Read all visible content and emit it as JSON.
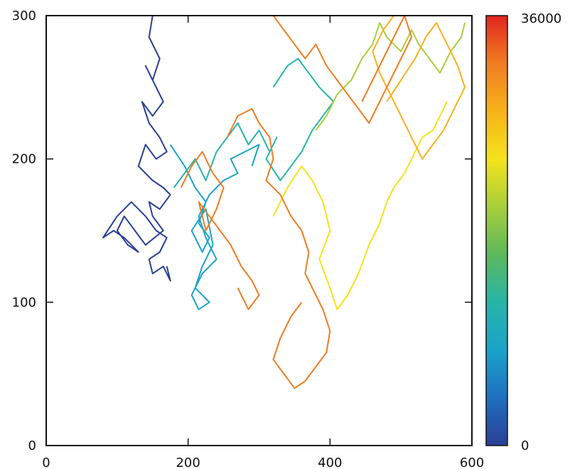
{
  "chart_data": {
    "type": "line",
    "title": "",
    "xlabel": "",
    "ylabel": "",
    "xlim": [
      0,
      600
    ],
    "ylim": [
      0,
      300
    ],
    "x_ticks": [
      0,
      200,
      400,
      600
    ],
    "y_ticks": [
      0,
      100,
      200,
      300
    ],
    "x_tick_labels": [
      "0",
      "200",
      "400",
      "600"
    ],
    "y_tick_labels": [
      "0",
      "100",
      "200",
      "300"
    ],
    "grid": false,
    "colorbar": {
      "min": 0,
      "max": 36000,
      "tick_labels": [
        "0",
        "36000"
      ],
      "colors": [
        "#2b3f95",
        "#1f6fbf",
        "#1aa3c9",
        "#27b5a8",
        "#5cb85c",
        "#a8cf3a",
        "#f5e21c",
        "#f7b21a",
        "#f07d22",
        "#e3261f"
      ]
    },
    "series": [
      {
        "color_value": 1500,
        "x": [
          150,
          145,
          160,
          150,
          140,
          155,
          165,
          150,
          135,
          145,
          160,
          170,
          155,
          140,
          130,
          150,
          165,
          175,
          160,
          145,
          150,
          165,
          140,
          125,
          110,
          100,
          115,
          130,
          110,
          95,
          80,
          100,
          120,
          140,
          155,
          170,
          160,
          145,
          150,
          165,
          175,
          170
        ],
        "y": [
          300,
          285,
          270,
          255,
          265,
          250,
          240,
          230,
          240,
          225,
          215,
          205,
          200,
          210,
          195,
          185,
          180,
          175,
          165,
          170,
          160,
          150,
          140,
          150,
          160,
          150,
          140,
          135,
          145,
          150,
          145,
          160,
          170,
          160,
          150,
          145,
          135,
          130,
          120,
          125,
          115,
          125
        ]
      },
      {
        "color_value": 8000,
        "x": [
          175,
          195,
          210,
          225,
          215,
          230,
          220,
          205,
          225,
          235,
          220,
          210,
          230,
          215,
          205,
          220,
          240,
          225,
          215,
          230,
          250,
          270,
          260,
          280,
          300,
          290
        ],
        "y": [
          210,
          195,
          180,
          170,
          155,
          145,
          135,
          150,
          165,
          140,
          125,
          110,
          100,
          95,
          105,
          120,
          130,
          145,
          160,
          175,
          185,
          190,
          200,
          205,
          210,
          195
        ]
      },
      {
        "color_value": 12000,
        "x": [
          180,
          195,
          210,
          225,
          240,
          255,
          270,
          285,
          300,
          315,
          325,
          310,
          330,
          345,
          360,
          375,
          390,
          405,
          385,
          370,
          355,
          340,
          320
        ],
        "y": [
          180,
          190,
          200,
          185,
          205,
          215,
          225,
          210,
          220,
          205,
          215,
          200,
          185,
          195,
          205,
          220,
          230,
          240,
          250,
          260,
          270,
          265,
          250
        ]
      },
      {
        "color_value": 20000,
        "x": [
          380,
          395,
          410,
          430,
          445,
          460,
          470,
          480,
          500,
          515,
          525,
          540,
          555,
          570,
          585,
          590
        ],
        "y": [
          220,
          230,
          245,
          255,
          270,
          280,
          295,
          285,
          275,
          290,
          280,
          270,
          260,
          275,
          285,
          295
        ]
      },
      {
        "color_value": 23000,
        "x": [
          320,
          340,
          360,
          375,
          390,
          400,
          385,
          400,
          410,
          425,
          440,
          455,
          470,
          480,
          490,
          505,
          520,
          530,
          545,
          555,
          565
        ],
        "y": [
          160,
          180,
          195,
          185,
          170,
          150,
          130,
          110,
          95,
          105,
          120,
          140,
          155,
          170,
          180,
          190,
          205,
          215,
          220,
          230,
          240
        ]
      },
      {
        "color_value": 26500,
        "x": [
          480,
          500,
          520,
          535,
          550,
          565,
          580,
          590,
          575,
          560,
          545,
          530,
          515,
          500,
          485,
          470,
          460,
          475,
          490
        ],
        "y": [
          240,
          255,
          270,
          285,
          295,
          280,
          265,
          250,
          235,
          220,
          210,
          200,
          215,
          230,
          245,
          260,
          275,
          290,
          300
        ]
      },
      {
        "color_value": 30000,
        "x": [
          320,
          335,
          350,
          365,
          380,
          395,
          410,
          425,
          440,
          455,
          470,
          485,
          500,
          515,
          505,
          490,
          475,
          460,
          445
        ],
        "y": [
          300,
          290,
          280,
          270,
          280,
          265,
          255,
          245,
          235,
          225,
          240,
          255,
          270,
          285,
          300,
          285,
          270,
          255,
          240
        ]
      },
      {
        "color_value": 32500,
        "x": [
          255,
          270,
          290,
          300,
          315,
          320,
          310,
          330,
          345,
          360,
          370,
          365,
          380,
          390,
          400,
          395,
          380,
          365,
          350,
          335,
          320,
          330,
          345,
          360
        ],
        "y": [
          215,
          230,
          235,
          225,
          215,
          200,
          185,
          175,
          160,
          150,
          135,
          120,
          105,
          95,
          80,
          65,
          55,
          45,
          40,
          50,
          60,
          75,
          90,
          100
        ]
      },
      {
        "color_value": 33000,
        "x": [
          190,
          205,
          220,
          235,
          250,
          240,
          225,
          215,
          230,
          245,
          260,
          275,
          290,
          300,
          285,
          270
        ],
        "y": [
          180,
          195,
          205,
          190,
          180,
          165,
          150,
          170,
          160,
          150,
          140,
          125,
          115,
          105,
          95,
          110
        ]
      }
    ]
  }
}
